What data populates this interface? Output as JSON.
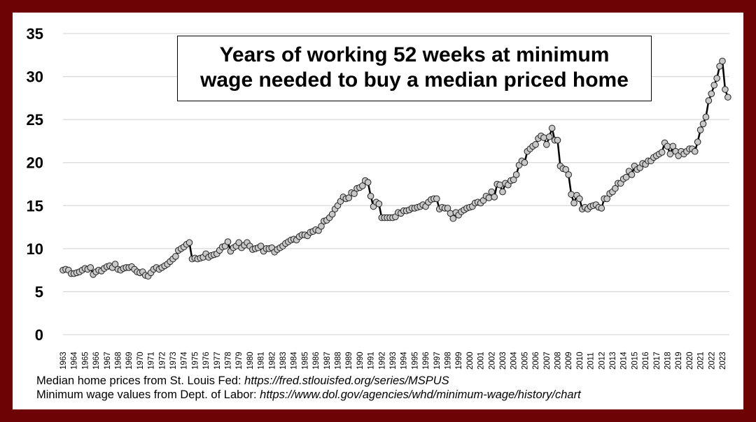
{
  "chart_data": {
    "type": "line",
    "title_line1": "Years of working 52 weeks at minimum",
    "title_line2": "wage needed to buy a median priced home",
    "xlabel": "",
    "ylabel": "",
    "ylim": [
      0,
      35
    ],
    "yticks": [
      0,
      5,
      10,
      15,
      20,
      25,
      30,
      35
    ],
    "xtick_years": [
      1963,
      1964,
      1965,
      1966,
      1967,
      1968,
      1969,
      1970,
      1971,
      1972,
      1973,
      1974,
      1975,
      1976,
      1977,
      1978,
      1979,
      1980,
      1981,
      1982,
      1983,
      1984,
      1985,
      1986,
      1987,
      1988,
      1989,
      1990,
      1991,
      1992,
      1993,
      1994,
      1995,
      1996,
      1997,
      1998,
      1999,
      2000,
      2001,
      2002,
      2003,
      2004,
      2005,
      2006,
      2007,
      2008,
      2009,
      2010,
      2011,
      2012,
      2013,
      2014,
      2015,
      2016,
      2017,
      2018,
      2019,
      2020,
      2021,
      2022,
      2023
    ],
    "grid": true,
    "frequency": "quarterly, starting 1963 Q1",
    "series": [
      {
        "name": "Years of work",
        "values": [
          7.5,
          7.6,
          7.5,
          7.1,
          7.1,
          7.2,
          7.3,
          7.5,
          7.7,
          7.6,
          7.8,
          7.0,
          7.3,
          7.5,
          7.4,
          7.7,
          7.9,
          8.0,
          7.8,
          8.2,
          7.6,
          7.5,
          7.7,
          7.8,
          7.8,
          7.9,
          7.6,
          7.3,
          7.2,
          7.3,
          6.9,
          6.8,
          7.2,
          7.6,
          7.8,
          7.6,
          7.8,
          8.0,
          8.2,
          8.5,
          8.8,
          9.1,
          9.8,
          10.0,
          10.2,
          10.5,
          10.7,
          8.8,
          8.9,
          8.8,
          8.9,
          9.0,
          9.4,
          9.0,
          9.2,
          9.3,
          9.4,
          9.8,
          10.2,
          10.3,
          10.8,
          9.7,
          10.1,
          10.3,
          10.7,
          10.1,
          10.4,
          10.7,
          10.3,
          9.9,
          10.0,
          10.1,
          10.3,
          9.7,
          10.0,
          10.0,
          10.1,
          9.6,
          9.9,
          10.1,
          10.3,
          10.6,
          10.8,
          11.0,
          11.1,
          11.0,
          11.4,
          11.6,
          11.6,
          11.5,
          11.9,
          12.0,
          12.2,
          12.1,
          12.6,
          13.2,
          13.3,
          13.6,
          14.0,
          14.6,
          15.0,
          15.5,
          16.0,
          15.8,
          15.9,
          16.5,
          16.4,
          17.0,
          17.1,
          17.3,
          17.9,
          17.7,
          16.1,
          14.9,
          15.4,
          15.2,
          13.6,
          13.6,
          13.6,
          13.6,
          13.6,
          13.7,
          14.2,
          14.1,
          14.4,
          14.4,
          14.5,
          14.7,
          14.7,
          14.8,
          14.9,
          15.1,
          14.9,
          15.4,
          15.7,
          15.8,
          15.8,
          14.6,
          14.8,
          14.7,
          14.7,
          14.1,
          13.5,
          14.2,
          13.9,
          14.3,
          14.5,
          14.7,
          14.8,
          14.9,
          15.3,
          15.4,
          15.3,
          15.6,
          16.1,
          15.9,
          16.6,
          16.0,
          17.5,
          17.4,
          16.6,
          17.6,
          17.4,
          17.9,
          18.0,
          18.6,
          19.7,
          20.2,
          20.0,
          21.3,
          21.6,
          21.9,
          22.1,
          22.8,
          23.1,
          22.9,
          22.1,
          23.0,
          24.0,
          22.6,
          22.6,
          19.6,
          19.3,
          19.2,
          18.6,
          16.3,
          15.3,
          16.2,
          15.8,
          14.6,
          14.8,
          14.6,
          14.9,
          15.0,
          15.1,
          14.8,
          14.7,
          15.8,
          15.8,
          16.4,
          16.6,
          17.0,
          17.6,
          17.6,
          18.1,
          18.3,
          19.0,
          18.6,
          19.6,
          19.2,
          19.4,
          19.9,
          19.8,
          20.2,
          20.2,
          20.6,
          20.8,
          21.0,
          21.2,
          22.3,
          21.9,
          21.0,
          21.9,
          21.3,
          20.8,
          21.3,
          21.0,
          21.3,
          21.6,
          21.6,
          21.3,
          22.4,
          23.8,
          24.5,
          25.3,
          27.2,
          28.0,
          29.0,
          29.8,
          31.2,
          31.8,
          28.5,
          27.6
        ]
      }
    ],
    "colors": {
      "line": "#000000",
      "marker": "#c8c8c8",
      "border": "#6e0306",
      "grid": "#d9d9d9"
    }
  },
  "footer": {
    "line1_text": "Median home prices from St. Louis Fed: ",
    "line1_url": "https://fred.stlouisfed.org/series/MSPUS",
    "line2_text": "Minimum wage values from Dept. of Labor: ",
    "line2_url": "https://www.dol.gov/agencies/whd/minimum-wage/history/chart"
  }
}
